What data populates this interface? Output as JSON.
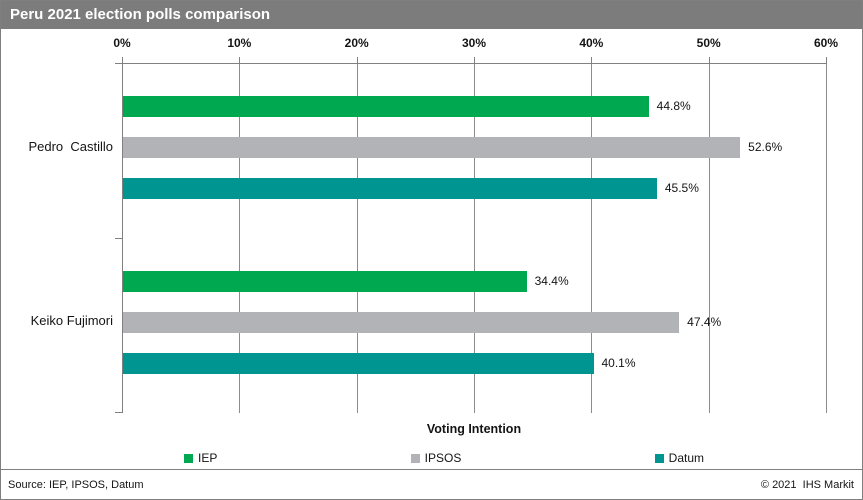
{
  "header": {
    "title": "Peru 2021 election polls comparison"
  },
  "chart_data": {
    "type": "bar",
    "orientation": "horizontal",
    "title": "Peru 2021 election polls comparison",
    "axis_title": "Voting Intention",
    "categories": [
      "Pedro  Castillo",
      "Keiko Fujimori"
    ],
    "series": [
      {
        "name": "IEP",
        "color": "#00a950",
        "values": [
          44.8,
          34.4
        ]
      },
      {
        "name": "IPSOS",
        "color": "#b2b3b6",
        "values": [
          52.6,
          47.4
        ]
      },
      {
        "name": "Datum",
        "color": "#009591",
        "values": [
          45.5,
          40.1
        ]
      }
    ],
    "data_labels": [
      [
        "44.8%",
        "52.6%",
        "45.5%"
      ],
      [
        "34.4%",
        "47.4%",
        "40.1%"
      ]
    ],
    "value_axis": {
      "position": "top",
      "min": 0,
      "max": 60,
      "ticks": [
        "0%",
        "10%",
        "20%",
        "30%",
        "40%",
        "50%",
        "60%"
      ]
    },
    "grid": true,
    "legend_position": "bottom",
    "legend": [
      "IEP",
      "IPSOS",
      "Datum"
    ]
  },
  "footer": {
    "source": "Source: IEP, IPSOS, Datum",
    "copyright": "© 2021  IHS Markit"
  }
}
